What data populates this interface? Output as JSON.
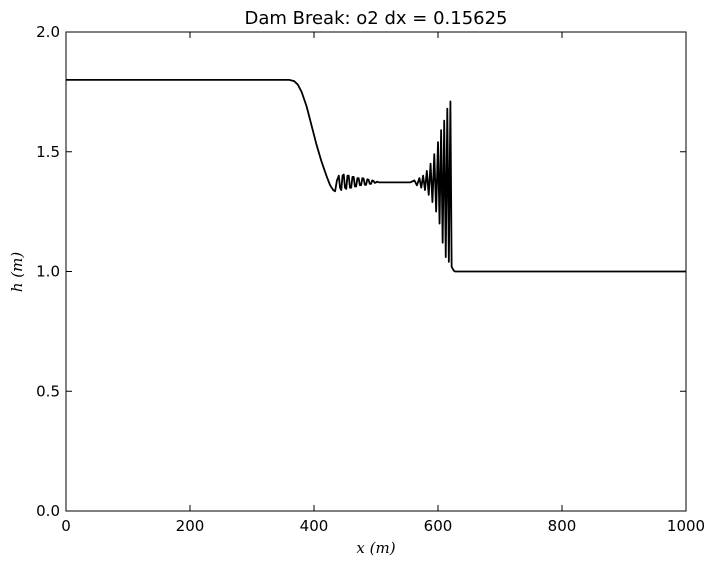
{
  "chart_data": {
    "type": "line",
    "title": "Dam Break: o2 dx = 0.15625",
    "xlabel": "x (m)",
    "ylabel": "h (m)",
    "xlim": [
      0,
      1000
    ],
    "ylim": [
      0.0,
      2.0
    ],
    "xticks": [
      0,
      200,
      400,
      600,
      800,
      1000
    ],
    "xtick_labels": [
      "0",
      "200",
      "400",
      "600",
      "800",
      "1000"
    ],
    "yticks": [
      0.0,
      0.5,
      1.0,
      1.5,
      2.0
    ],
    "ytick_labels": [
      "0.0",
      "0.5",
      "1.0",
      "1.5",
      "2.0"
    ],
    "grid": false,
    "legend": "none",
    "series": [
      {
        "color": "#000000",
        "x": [
          0,
          100,
          200,
          300,
          360,
          368,
          374,
          380,
          388,
          396,
          404,
          412,
          420,
          426,
          431,
          434,
          437,
          440,
          442,
          444,
          446,
          448,
          450,
          452,
          454,
          456,
          458,
          460,
          462,
          464,
          466,
          468,
          470,
          472,
          474,
          476,
          478,
          480,
          482,
          484,
          486,
          488,
          490,
          492,
          494,
          496,
          498,
          500,
          502,
          505,
          510,
          520,
          540,
          555,
          562,
          566,
          570,
          573,
          576,
          579,
          582,
          585,
          588,
          591,
          594,
          597,
          600,
          602.5,
          605,
          607.5,
          610,
          612.5,
          615,
          617.5,
          620,
          622,
          624,
          626,
          628,
          630,
          640,
          700,
          800,
          900,
          1000
        ],
        "y": [
          1.8,
          1.8,
          1.8,
          1.8,
          1.8,
          1.795,
          1.78,
          1.75,
          1.69,
          1.61,
          1.53,
          1.46,
          1.4,
          1.36,
          1.34,
          1.335,
          1.38,
          1.4,
          1.35,
          1.34,
          1.4,
          1.405,
          1.35,
          1.345,
          1.4,
          1.4,
          1.35,
          1.35,
          1.395,
          1.395,
          1.355,
          1.355,
          1.39,
          1.39,
          1.36,
          1.36,
          1.39,
          1.388,
          1.362,
          1.362,
          1.385,
          1.383,
          1.366,
          1.366,
          1.38,
          1.378,
          1.37,
          1.372,
          1.375,
          1.372,
          1.372,
          1.372,
          1.372,
          1.372,
          1.38,
          1.36,
          1.39,
          1.35,
          1.4,
          1.34,
          1.42,
          1.32,
          1.45,
          1.29,
          1.49,
          1.25,
          1.54,
          1.2,
          1.59,
          1.12,
          1.63,
          1.06,
          1.68,
          1.04,
          1.71,
          1.02,
          1.01,
          1.002,
          1.0,
          1.0,
          1.0,
          1.0,
          1.0,
          1.0,
          1.0
        ]
      }
    ]
  }
}
